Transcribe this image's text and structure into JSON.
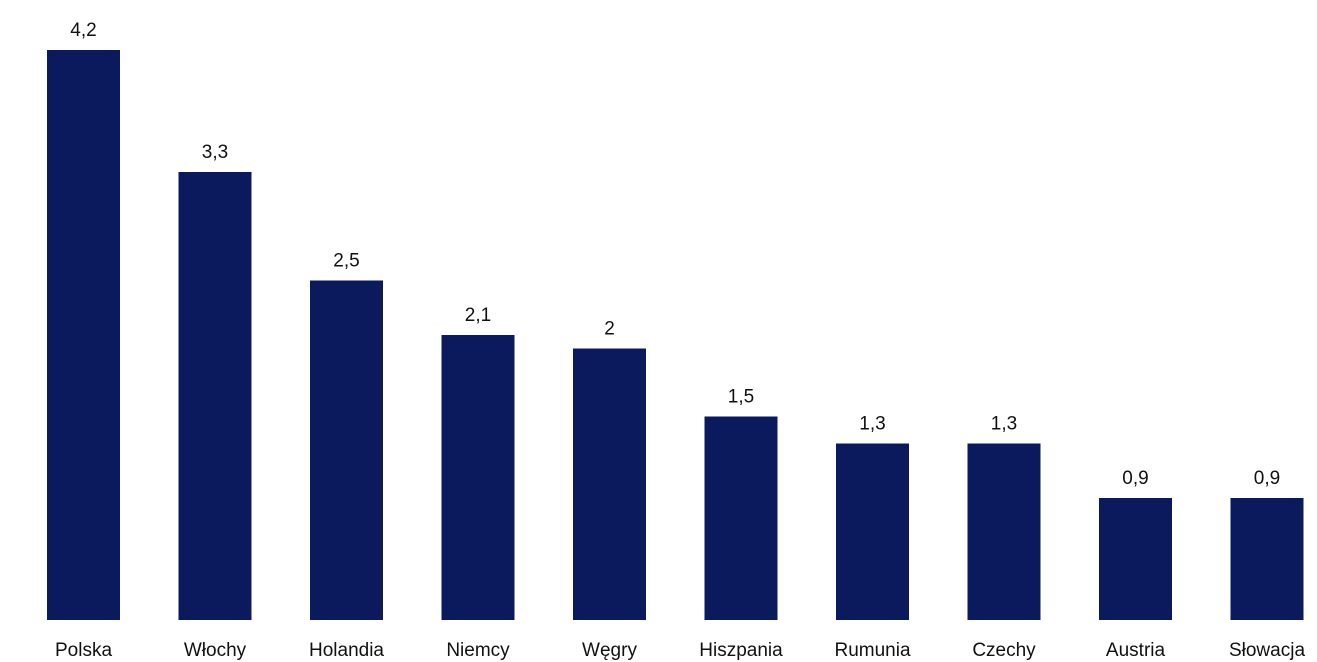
{
  "chart_data": {
    "type": "bar",
    "title": "",
    "xlabel": "",
    "ylabel": "",
    "categories": [
      "Polska",
      "Włochy",
      "Holandia",
      "Niemcy",
      "Węgry",
      "Hiszpania",
      "Rumunia",
      "Czechy",
      "Austria",
      "Słowacja"
    ],
    "values": [
      4.2,
      3.3,
      2.5,
      2.1,
      2.0,
      1.5,
      1.3,
      1.3,
      0.9,
      0.9
    ],
    "value_labels": [
      "4,2",
      "3,3",
      "2,5",
      "2,1",
      "2",
      "1,5",
      "1,3",
      "1,3",
      "0,9",
      "0,9"
    ],
    "ylim": [
      0,
      4.2
    ],
    "grid": false,
    "legend": "none",
    "bar_color": "#0b1a5c"
  }
}
